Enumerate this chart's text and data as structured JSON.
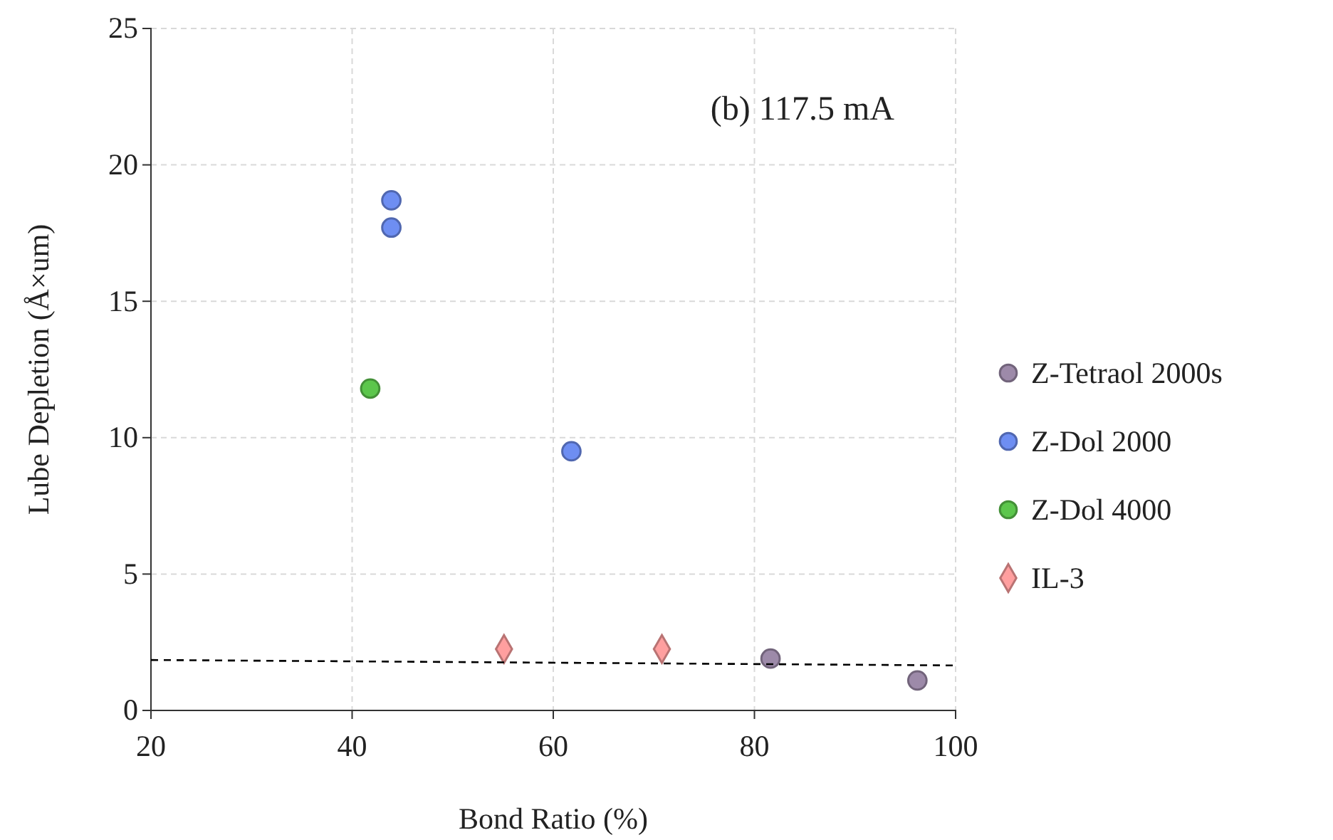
{
  "chart_data": {
    "type": "scatter",
    "xlabel": "Bond Ratio (%)",
    "ylabel": "Lube Depletion (Å×um)",
    "annotations": [
      "(b) 117.5 mA"
    ],
    "xlim": [
      20,
      100
    ],
    "xticks": [
      20,
      40,
      60,
      80,
      100
    ],
    "ylim": [
      0,
      25
    ],
    "yticks": [
      0,
      5,
      10,
      15,
      20,
      25
    ],
    "grid": true,
    "legend": "right",
    "series": [
      {
        "name": "Z-Tetraol 2000s",
        "color": "#9d8aa9",
        "marker": "circle",
        "x": [
          81.6,
          96.2
        ],
        "values": [
          1.9,
          1.1
        ]
      },
      {
        "name": "Z-Dol 2000",
        "color": "#6e8ef2",
        "marker": "circle",
        "x": [
          43.9,
          43.9,
          61.8
        ],
        "values": [
          18.7,
          17.7,
          9.5
        ]
      },
      {
        "name": "Z-Dol 4000",
        "color": "#5cc64c",
        "marker": "circle",
        "x": [
          41.8
        ],
        "values": [
          11.8
        ]
      },
      {
        "name": "IL-3",
        "color": "#ff9f9f",
        "marker": "diamond",
        "x": [
          55.1,
          70.8
        ],
        "values": [
          2.25,
          2.25
        ]
      },
      {
        "type": "line",
        "color": "#000000",
        "line_style": "dashed",
        "x": [
          20,
          100
        ],
        "values": [
          1.85,
          1.65
        ]
      }
    ]
  }
}
